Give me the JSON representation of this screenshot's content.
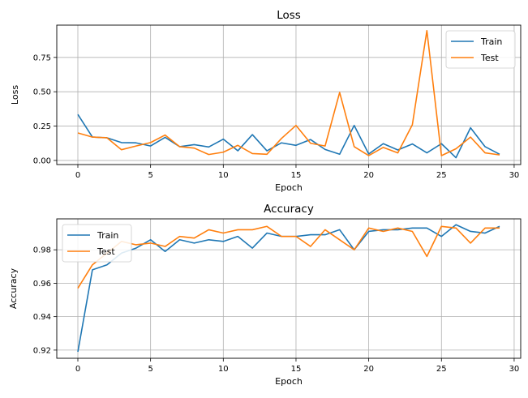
{
  "chart_data": [
    {
      "type": "line",
      "title": "Loss",
      "xlabel": "Epoch",
      "ylabel": "Loss",
      "xlim": [
        -1.45,
        30.45
      ],
      "ylim": [
        -0.03,
        0.985
      ],
      "xticks": [
        0,
        5,
        10,
        15,
        20,
        25,
        30
      ],
      "yticks": [
        0.0,
        0.25,
        0.5,
        0.75
      ],
      "ytick_labels": [
        "0.00",
        "0.25",
        "0.50",
        "0.75"
      ],
      "grid": true,
      "legend_position": "upper right",
      "x": [
        0,
        1,
        2,
        3,
        4,
        5,
        6,
        7,
        8,
        9,
        10,
        11,
        12,
        13,
        14,
        15,
        16,
        17,
        18,
        19,
        20,
        21,
        22,
        23,
        24,
        25,
        26,
        27,
        28,
        29
      ],
      "series": [
        {
          "name": "Train",
          "color": "#1f77b4",
          "values": [
            0.335,
            0.17,
            0.165,
            0.13,
            0.128,
            0.105,
            0.168,
            0.1,
            0.115,
            0.098,
            0.155,
            0.07,
            0.188,
            0.07,
            0.128,
            0.11,
            0.152,
            0.08,
            0.045,
            0.255,
            0.047,
            0.122,
            0.076,
            0.12,
            0.055,
            0.122,
            0.02,
            0.238,
            0.1,
            0.045
          ]
        },
        {
          "name": "Test",
          "color": "#ff7f0e",
          "values": [
            0.2,
            0.17,
            0.165,
            0.078,
            0.105,
            0.13,
            0.185,
            0.1,
            0.09,
            0.043,
            0.06,
            0.11,
            0.05,
            0.045,
            0.16,
            0.255,
            0.125,
            0.105,
            0.495,
            0.1,
            0.035,
            0.095,
            0.055,
            0.26,
            0.945,
            0.035,
            0.085,
            0.17,
            0.055,
            0.04
          ]
        }
      ]
    },
    {
      "type": "line",
      "title": "Accuracy",
      "xlabel": "Epoch",
      "ylabel": "Accuracy",
      "xlim": [
        -1.45,
        30.45
      ],
      "ylim": [
        0.9151,
        0.9985
      ],
      "xticks": [
        0,
        5,
        10,
        15,
        20,
        25,
        30
      ],
      "yticks": [
        0.92,
        0.94,
        0.96,
        0.98
      ],
      "ytick_labels": [
        "0.92",
        "0.94",
        "0.96",
        "0.98"
      ],
      "grid": true,
      "legend_position": "upper left",
      "x": [
        0,
        1,
        2,
        3,
        4,
        5,
        6,
        7,
        8,
        9,
        10,
        11,
        12,
        13,
        14,
        15,
        16,
        17,
        18,
        19,
        20,
        21,
        22,
        23,
        24,
        25,
        26,
        27,
        28,
        29
      ],
      "series": [
        {
          "name": "Train",
          "color": "#1f77b4",
          "values": [
            0.919,
            0.968,
            0.971,
            0.978,
            0.981,
            0.986,
            0.979,
            0.986,
            0.984,
            0.986,
            0.985,
            0.988,
            0.981,
            0.99,
            0.988,
            0.988,
            0.989,
            0.989,
            0.992,
            0.98,
            0.991,
            0.992,
            0.992,
            0.993,
            0.993,
            0.988,
            0.995,
            0.991,
            0.99,
            0.994
          ]
        },
        {
          "name": "Test",
          "color": "#ff7f0e",
          "values": [
            0.957,
            0.971,
            0.978,
            0.985,
            0.983,
            0.984,
            0.982,
            0.988,
            0.987,
            0.992,
            0.99,
            0.992,
            0.992,
            0.994,
            0.988,
            0.988,
            0.982,
            0.992,
            0.986,
            0.98,
            0.993,
            0.991,
            0.993,
            0.991,
            0.976,
            0.994,
            0.993,
            0.984,
            0.993,
            0.993
          ]
        }
      ]
    }
  ]
}
